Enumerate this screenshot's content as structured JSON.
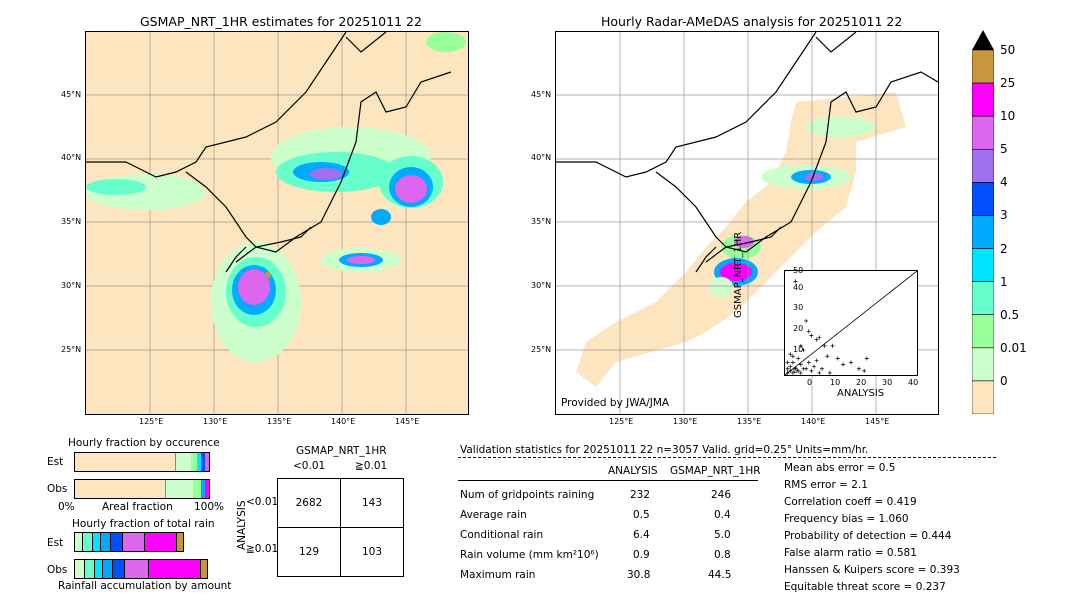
{
  "left_map": {
    "title": "GSMAP_NRT_1HR estimates for 20251011 22"
  },
  "right_map": {
    "title": "Hourly Radar-AMeDAS analysis for 20251011 22",
    "credit": "Provided by JWA/JMA"
  },
  "map_axes": {
    "lat_labels": [
      "45°N",
      "40°N",
      "35°N",
      "30°N",
      "25°N"
    ],
    "lon_labels": [
      "125°E",
      "130°E",
      "135°E",
      "140°E",
      "145°E"
    ]
  },
  "colorbar": {
    "labels": [
      "50",
      "25",
      "10",
      "5",
      "4",
      "3",
      "2",
      "1",
      "0.5",
      "0.01",
      "0"
    ],
    "colors": [
      "#c8963c",
      "#ff00ff",
      "#dd66ee",
      "#a070f0",
      "#0050ff",
      "#00aaff",
      "#00e5ff",
      "#66ffcc",
      "#99ff99",
      "#ccffcc",
      "#fde6bf"
    ]
  },
  "scatter": {
    "xlabel": "ANALYSIS",
    "ylabel": "GSMAP_NRT_1HR",
    "ticks": [
      "0",
      "10",
      "20",
      "30",
      "40",
      "50"
    ]
  },
  "chart_data": [
    {
      "type": "scatter",
      "xlabel": "ANALYSIS",
      "ylabel": "GSMAP_NRT_1HR",
      "xlim": [
        0,
        50
      ],
      "ylim": [
        0,
        50
      ],
      "points": [
        [
          4,
          45
        ],
        [
          8,
          26
        ],
        [
          9,
          21
        ],
        [
          10,
          19
        ],
        [
          12,
          17
        ],
        [
          13,
          18
        ],
        [
          15,
          14
        ],
        [
          16,
          9
        ],
        [
          18,
          14
        ],
        [
          20,
          8
        ],
        [
          22,
          5
        ],
        [
          25,
          6
        ],
        [
          28,
          3
        ],
        [
          30,
          2
        ],
        [
          31,
          8
        ],
        [
          2,
          10
        ],
        [
          3,
          6
        ],
        [
          5,
          8
        ],
        [
          6,
          5
        ],
        [
          7,
          12
        ],
        [
          1,
          3
        ],
        [
          2,
          2
        ],
        [
          3,
          1
        ],
        [
          1,
          1
        ],
        [
          4,
          3
        ],
        [
          5,
          2
        ],
        [
          6,
          1
        ],
        [
          11,
          4
        ],
        [
          14,
          3
        ],
        [
          17,
          1
        ],
        [
          9,
          6
        ],
        [
          10,
          2
        ],
        [
          8,
          3
        ],
        [
          12,
          7
        ],
        [
          13,
          1
        ],
        [
          2,
          4
        ],
        [
          1,
          6
        ],
        [
          3,
          9
        ],
        [
          6,
          14
        ],
        [
          7,
          3
        ]
      ]
    }
  ],
  "fractions": {
    "occurrence_title": "Hourly fraction by occurence",
    "amount_title": "Hourly fraction of total rain",
    "est_label": "Est",
    "obs_label": "Obs",
    "x_min": "0%",
    "x_mid": "Areal fraction",
    "x_max": "100%",
    "footer": "Rainfall accumulation by amount"
  },
  "contingency": {
    "title": "GSMAP_NRT_1HR",
    "col1": "<0.01",
    "col2": "≧0.01",
    "row_axis": "ANALYSIS",
    "row1": "<0.01",
    "row2": "≧0.01",
    "cells": [
      "2682",
      "143",
      "129",
      "103"
    ]
  },
  "validation": {
    "header": "Validation statistics for 20251011 22  n=3057 Valid. grid=0.25° Units=mm/hr.",
    "col_analysis": "ANALYSIS",
    "col_gsmap": "GSMAP_NRT_1HR",
    "rows": [
      {
        "label": "Num of gridpoints raining",
        "analysis": "232",
        "gsmap": "246"
      },
      {
        "label": "Average rain",
        "analysis": "0.5",
        "gsmap": "0.4"
      },
      {
        "label": "Conditional rain",
        "analysis": "6.4",
        "gsmap": "5.0"
      },
      {
        "label": "Rain volume (mm km²10⁶)",
        "analysis": "0.9",
        "gsmap": "0.8"
      },
      {
        "label": "Maximum rain",
        "analysis": "30.8",
        "gsmap": "44.5"
      }
    ],
    "scores": [
      "Mean abs error =    0.5",
      "RMS error =    2.1",
      "Correlation coeff =  0.419",
      "Frequency bias =  1.060",
      "Probability of detection =  0.444",
      "False alarm ratio =  0.581",
      "Hanssen & Kuipers score =  0.393",
      "Equitable threat score =  0.237"
    ]
  }
}
